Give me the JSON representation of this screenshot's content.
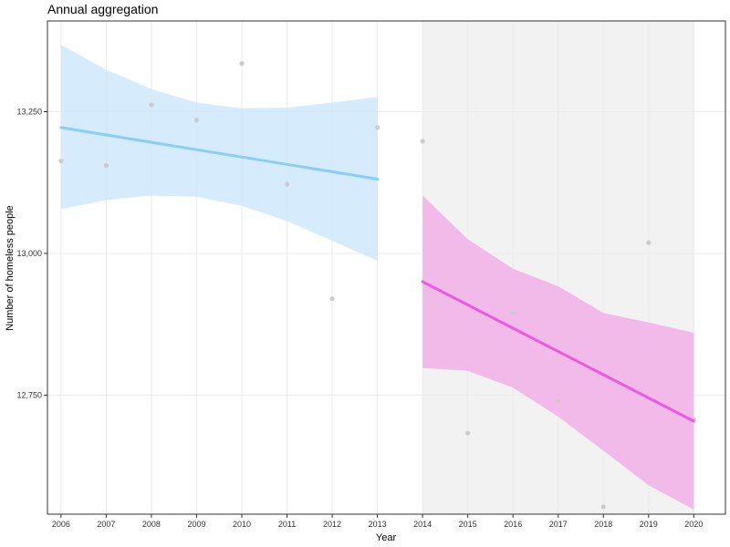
{
  "chart_data": {
    "type": "scatter",
    "title": "Annual aggregation",
    "xlabel": "Year",
    "ylabel": "Number of homeless people",
    "xlim": [
      2005.7,
      2020.7
    ],
    "ylim": [
      12540,
      13410
    ],
    "x_ticks": [
      2006,
      2007,
      2008,
      2009,
      2010,
      2011,
      2012,
      2013,
      2014,
      2015,
      2016,
      2017,
      2018,
      2019,
      2020
    ],
    "y_ticks": [
      12750,
      13000,
      13250
    ],
    "y_tick_labels": [
      "12,750",
      "13,000",
      "13,250"
    ],
    "grid": true,
    "shaded_region": {
      "x": [
        2014,
        2020
      ],
      "color": "#f2f2f2"
    },
    "points": {
      "color": "#cccccc",
      "x": [
        2006,
        2007,
        2008,
        2009,
        2010,
        2011,
        2012,
        2013,
        2014,
        2015,
        2016,
        2017,
        2018,
        2019,
        2020
      ],
      "y": [
        13163,
        13155,
        13262,
        13235,
        13335,
        13122,
        12920,
        13222,
        13198,
        12683,
        12895,
        12740,
        12553,
        13019,
        12707
      ]
    },
    "series": [
      {
        "color": "#87cefa",
        "band_color": "#cfe8fb",
        "x": [
          2006,
          2007,
          2008,
          2009,
          2010,
          2011,
          2012,
          2013
        ],
        "y": [
          13222,
          13209,
          13196,
          13183,
          13170,
          13157,
          13144,
          13131
        ],
        "ci_lower": [
          13078,
          13094,
          13102,
          13100,
          13084,
          13057,
          13022,
          12987
        ],
        "ci_upper": [
          13368,
          13324,
          13290,
          13266,
          13256,
          13257,
          13266,
          13276
        ]
      },
      {
        "color": "#ee5adf",
        "band_color": "#f2b0e8",
        "x": [
          2014,
          2015,
          2016,
          2017,
          2018,
          2019,
          2020
        ],
        "y": [
          12950,
          12909,
          12868,
          12827,
          12786,
          12745,
          12704
        ],
        "ci_lower": [
          12798,
          12793,
          12763,
          12712,
          12652,
          12591,
          12548
        ],
        "ci_upper": [
          13102,
          13025,
          12973,
          12942,
          12895,
          12878,
          12860
        ]
      }
    ]
  }
}
